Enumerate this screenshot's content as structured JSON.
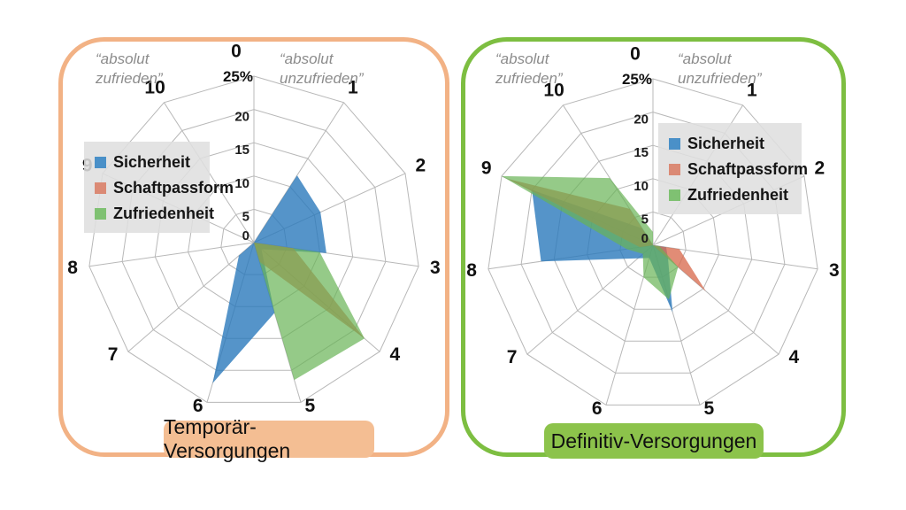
{
  "chart_data": [
    {
      "type": "radar",
      "title": "Temporär-Versorgungen",
      "axes": [
        "0",
        "1",
        "2",
        "3",
        "4",
        "5",
        "6",
        "7",
        "8",
        "9",
        "10"
      ],
      "radial_ticks": [
        "0",
        "5",
        "10",
        "15",
        "20",
        "25%"
      ],
      "rmax": 25,
      "unit": "%",
      "grid": true,
      "legend_position": "left",
      "annotations": {
        "top_left": [
          "“absolut",
          "zufrieden”"
        ],
        "top_right": [
          "“absolut",
          "unzufrieden”"
        ]
      },
      "series": [
        {
          "name": "Sicherheit",
          "values": [
            0,
            12,
            11,
            11,
            1.5,
            11,
            22,
            3,
            0,
            0,
            0
          ]
        },
        {
          "name": "Schaftpassform",
          "values": [
            0,
            12,
            0,
            6,
            22,
            3,
            0,
            0,
            0,
            0,
            0
          ]
        },
        {
          "name": "Zufriedenheit",
          "values": [
            0,
            0,
            0,
            10,
            22,
            21.5,
            0,
            0,
            0,
            0,
            0
          ]
        }
      ],
      "accent_color": "#F2B285",
      "badge_color": "#F4BE93"
    },
    {
      "type": "radar",
      "title": "Definitiv-Versorgungen",
      "axes": [
        "0",
        "1",
        "2",
        "3",
        "4",
        "5",
        "6",
        "7",
        "8",
        "9",
        "10"
      ],
      "radial_ticks": [
        "0",
        "5",
        "10",
        "15",
        "20",
        "25%"
      ],
      "rmax": 25,
      "unit": "%",
      "grid": true,
      "legend_position": "right",
      "annotations": {
        "top_left": [
          "“absolut",
          "zufrieden”"
        ],
        "top_right": [
          "“absolut",
          "unzufrieden”"
        ]
      },
      "series": [
        {
          "name": "Sicherheit",
          "values": [
            0,
            0,
            0,
            2,
            3,
            10.5,
            2,
            3,
            17,
            20,
            3
          ]
        },
        {
          "name": "Schaftpassform",
          "values": [
            0,
            0,
            0,
            4,
            10.5,
            0,
            0,
            0,
            2,
            24,
            6.5
          ]
        },
        {
          "name": "Zufriedenheit",
          "values": [
            2,
            0,
            0,
            1,
            5,
            8.5,
            5,
            2,
            4,
            25,
            12
          ]
        }
      ],
      "accent_color": "#7DBE41",
      "badge_color": "#8CC34B"
    }
  ],
  "style": {
    "grid_color": "#b8b8b8",
    "series_colors": {
      "Sicherheit": {
        "fill": "#2B79BC",
        "opacity": 0.8,
        "swatch": "#4A90C8"
      },
      "Schaftpassform": {
        "fill": "#D86C4F",
        "opacity": 0.78,
        "swatch": "#DB8A75"
      },
      "Zufriedenheit": {
        "fill": "#68B455",
        "opacity": 0.7,
        "swatch": "#7FC172"
      }
    }
  }
}
